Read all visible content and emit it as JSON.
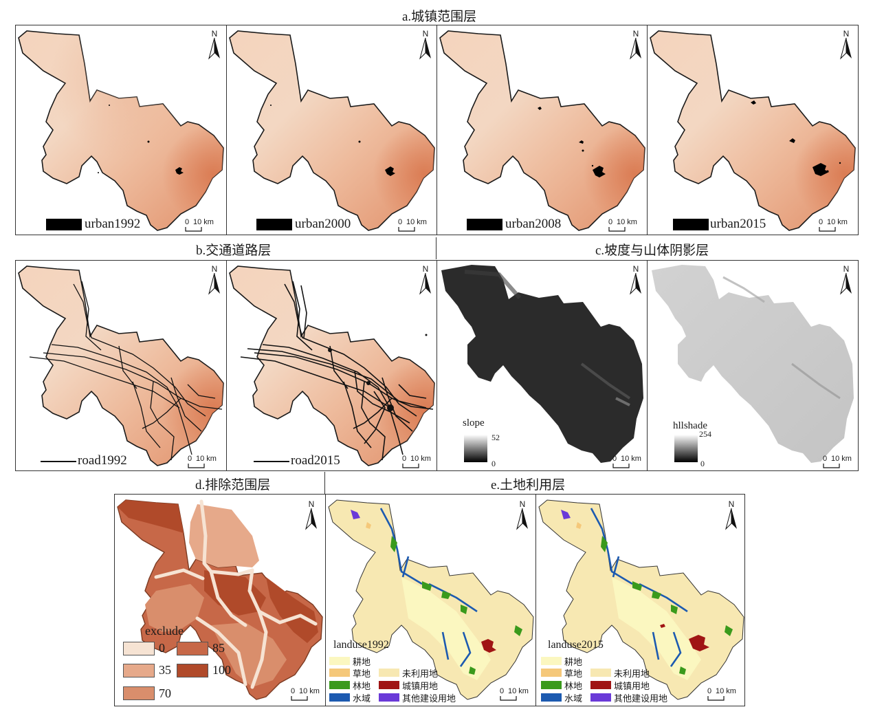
{
  "titles": {
    "a": "a.城镇范围层",
    "b": "b.交通道路层",
    "c": "c.坡度与山体阴影层",
    "d": "d.排除范围层",
    "e": "e.土地利用层"
  },
  "north_label": "N",
  "scale": {
    "zero": "0",
    "dist": "10 km"
  },
  "urban_legends": [
    "urban1992",
    "urban2000",
    "urban2008",
    "urban2015"
  ],
  "road_legends": [
    "road1992",
    "road2015"
  ],
  "slope": {
    "title": "slope",
    "max": "52",
    "min": "0"
  },
  "hillshade": {
    "title": "hllshade",
    "max": "254",
    "min": "0"
  },
  "exclude": {
    "title": "exclude",
    "classes": [
      {
        "label": "0",
        "color": "#f6e3d3"
      },
      {
        "label": "35",
        "color": "#e6a98a"
      },
      {
        "label": "70",
        "color": "#d98e6c"
      },
      {
        "label": "85",
        "color": "#c76848"
      },
      {
        "label": "100",
        "color": "#b04a2a"
      }
    ]
  },
  "landuse": {
    "titles": [
      "landuse1992",
      "landuse2015"
    ],
    "classes": [
      {
        "label": "耕地",
        "color": "#fbf7c0"
      },
      {
        "label": "草地",
        "color": "#f5c87a"
      },
      {
        "label": "林地",
        "color": "#3a9a1c"
      },
      {
        "label": "水域",
        "color": "#1c5ab0"
      },
      {
        "label": "未利用地",
        "color": "#f7e8b2"
      },
      {
        "label": "城镇用地",
        "color": "#a01414"
      },
      {
        "label": "其他建设用地",
        "color": "#6a3ad8"
      }
    ]
  },
  "colors": {
    "dem_light": "#f6dcc4",
    "dem_mid": "#eab394",
    "dem_dark": "#dc8a66",
    "outline": "#1a1a1a",
    "slope_bg": "#2a2a2a",
    "hill_bg": "#cfcfcf"
  }
}
